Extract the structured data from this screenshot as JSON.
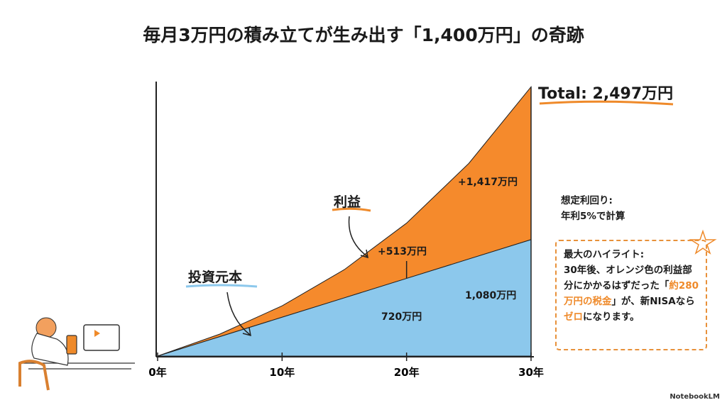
{
  "title": "毎月3万円の積み立てが生み出す「1,400万円」の奇跡",
  "chart_data": {
    "type": "area",
    "title": "毎月3万円の積み立てが生み出す「1,400万円」の奇跡",
    "x": [
      0,
      5,
      10,
      15,
      20,
      25,
      30
    ],
    "xticks": [
      "0年",
      "10年",
      "20年",
      "30年"
    ],
    "xtick_values": [
      0,
      10,
      20,
      30
    ],
    "ylim": [
      0,
      2500
    ],
    "series": [
      {
        "name": "投資元本",
        "color": "#8cc8ec",
        "values": [
          0,
          180,
          360,
          540,
          720,
          900,
          1080
        ]
      },
      {
        "name": "利益",
        "color": "#f58a2c",
        "values": [
          0,
          204,
          466,
          802,
          1233,
          1787,
          2497
        ]
      }
    ],
    "annotations": {
      "total": "Total: 2,497万円",
      "profit30": "+1,417万円",
      "profit20": "+513万円",
      "principal30": "1,080万円",
      "principal20": "720万円",
      "profit_label": "利益",
      "principal_label": "投資元本"
    }
  },
  "notes": {
    "line1": "想定利回り:",
    "line2": "年利5%で計算"
  },
  "highlight": {
    "heading": "最大のハイライト:",
    "t1": "30年後、オレンジ色の利益部分にかかるはずだった",
    "q_open": "「",
    "tax": "約280万円の税金",
    "q_close": "」が、",
    "t2": "新NISAなら",
    "zero": "ゼロ",
    "t3": "になります。"
  },
  "brand": "NotebookLM"
}
